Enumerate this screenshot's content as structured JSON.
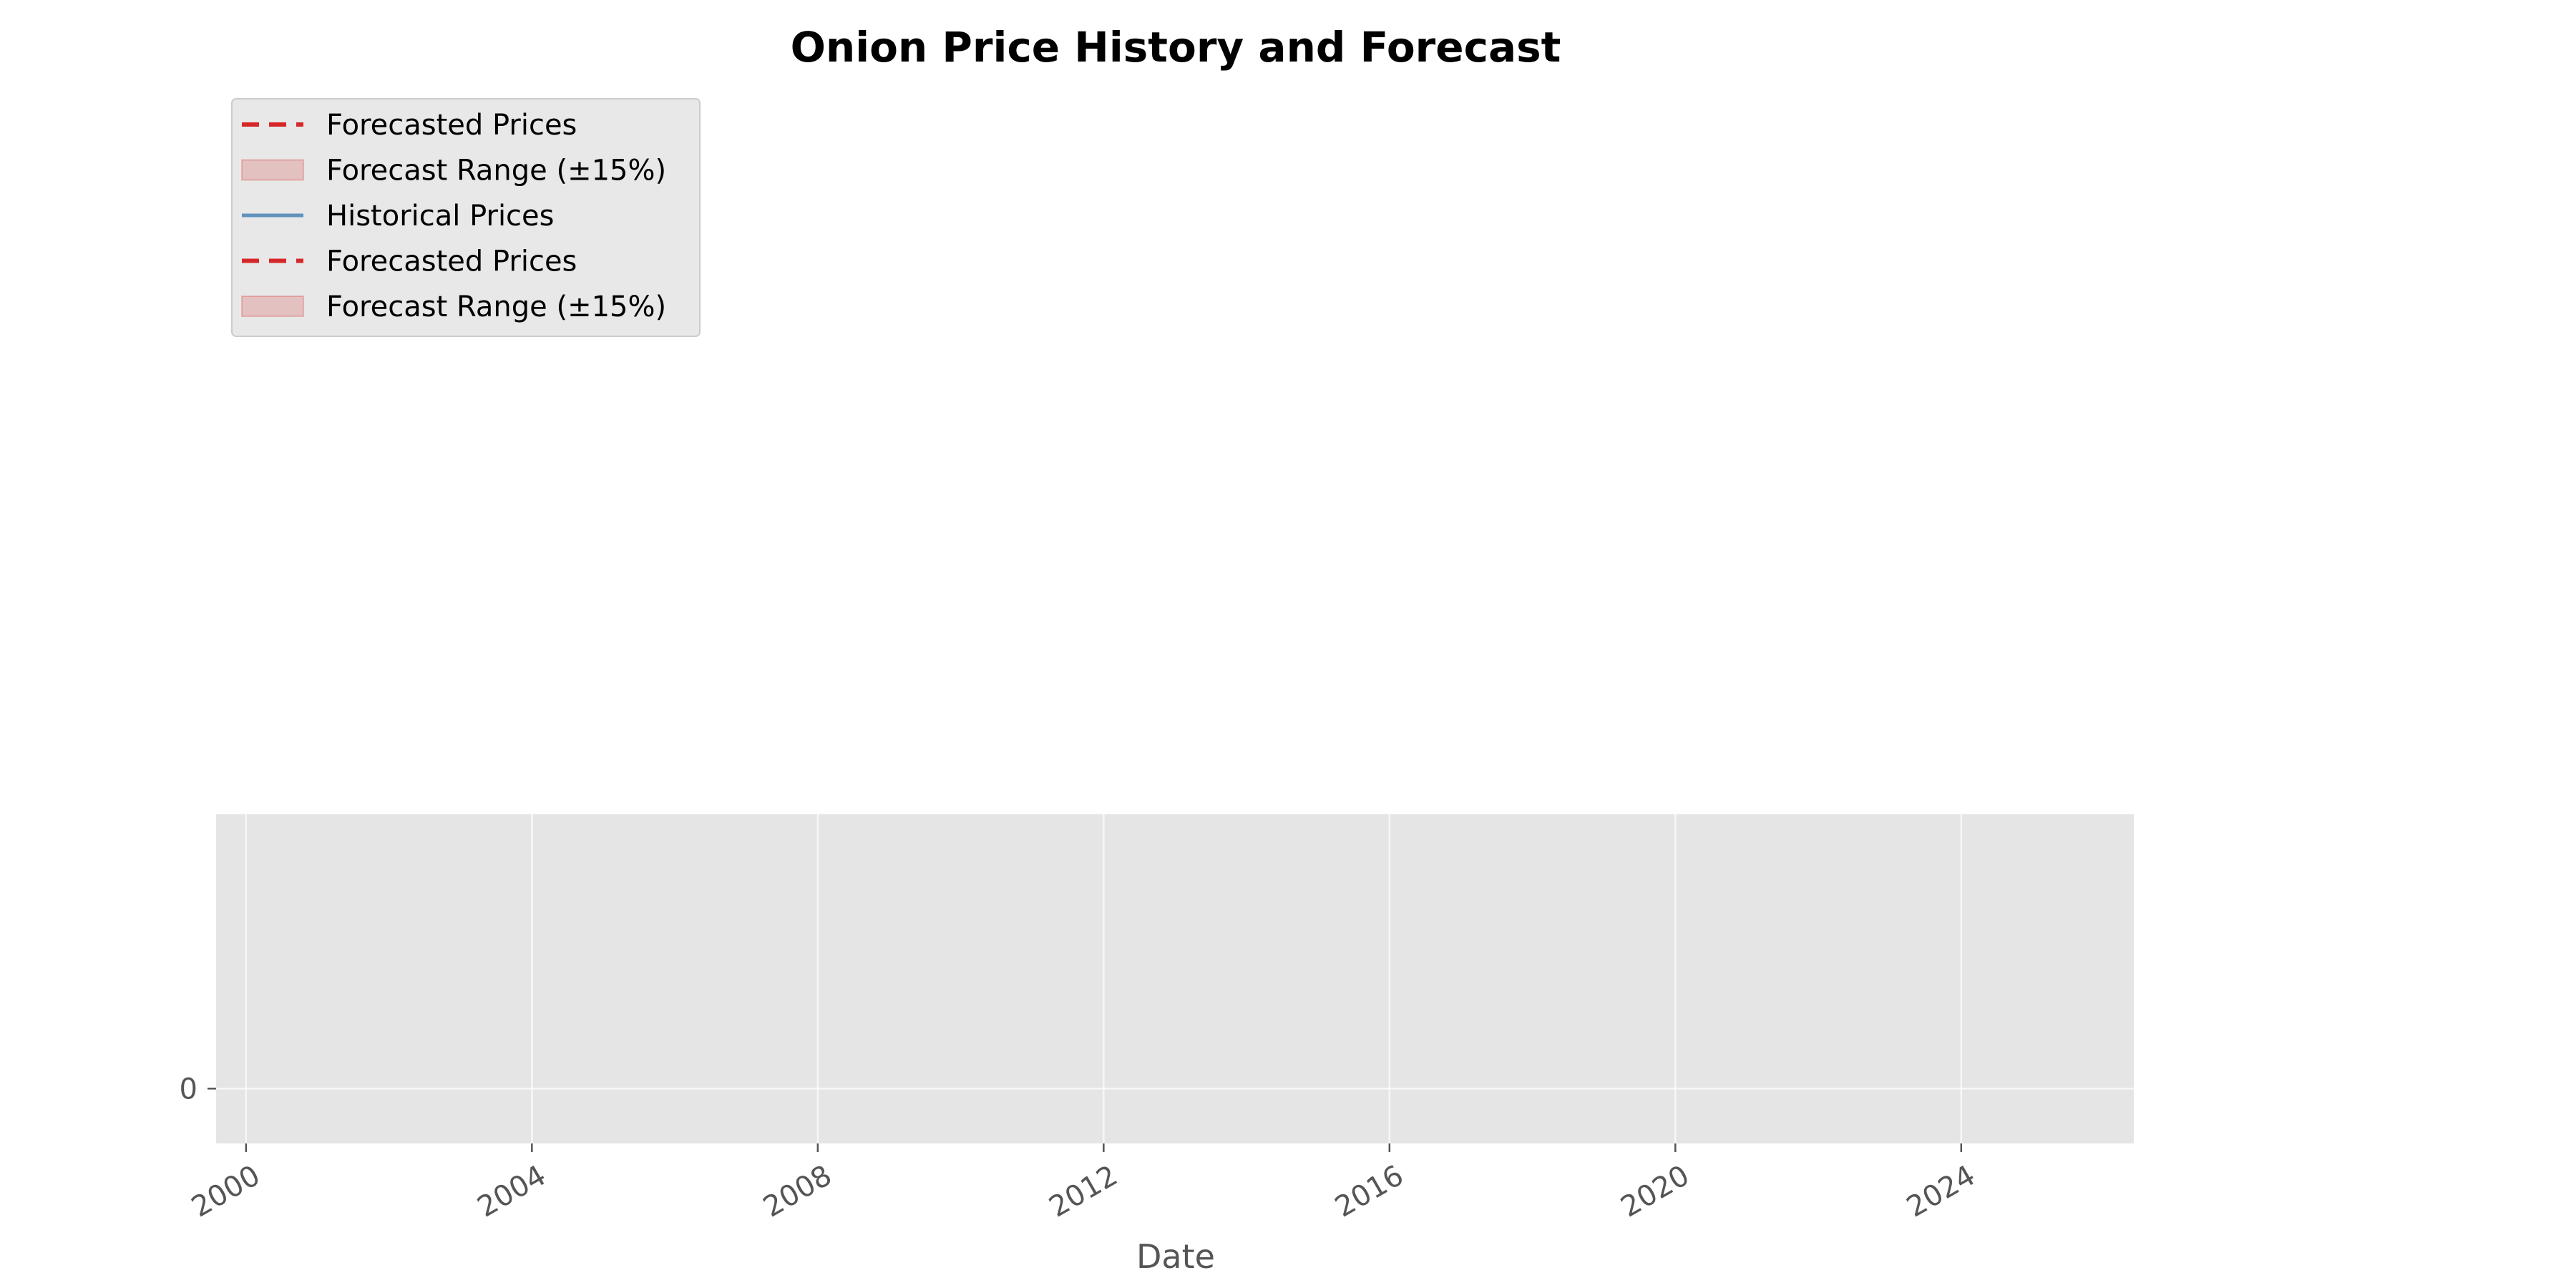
{
  "chart_data": {
    "type": "line",
    "title": "Onion Price History and Forecast",
    "xlabel": "Date",
    "ylabel": "",
    "x_axis_type": "date",
    "xlim": [
      "1999-08-01",
      "2026-06-01"
    ],
    "ylim": [
      -0.25,
      1.25
    ],
    "x_ticks": [
      "2000",
      "2004",
      "2008",
      "2012",
      "2016",
      "2020",
      "2024"
    ],
    "y_ticks": [
      0
    ],
    "y_tick_labels": [
      "0"
    ],
    "grid": true,
    "legend_position": "top-left, above plot area",
    "legend": [
      {
        "label": "Forecasted Prices",
        "kind": "dashed-line",
        "color": "#d62728"
      },
      {
        "label": "Forecast Range (±15%)",
        "kind": "band",
        "color": "#d62728"
      },
      {
        "label": "Historical Prices",
        "kind": "line",
        "color": "#4682b4"
      },
      {
        "label": "Forecasted Prices",
        "kind": "dashed-line",
        "color": "#d62728"
      },
      {
        "label": "Forecast Range (±15%)",
        "kind": "band",
        "color": "#d62728"
      }
    ],
    "series": [
      {
        "name": "Historical Prices",
        "color": "#4682b4",
        "points": []
      },
      {
        "name": "Forecasted Prices",
        "color": "#d62728",
        "points": []
      }
    ]
  },
  "colors": {
    "plot_background": "#e5e5e5",
    "grid": "#ffffff",
    "tick_label": "#555555",
    "legend_background": "#e8e8e8",
    "legend_border": "#cccccc"
  }
}
